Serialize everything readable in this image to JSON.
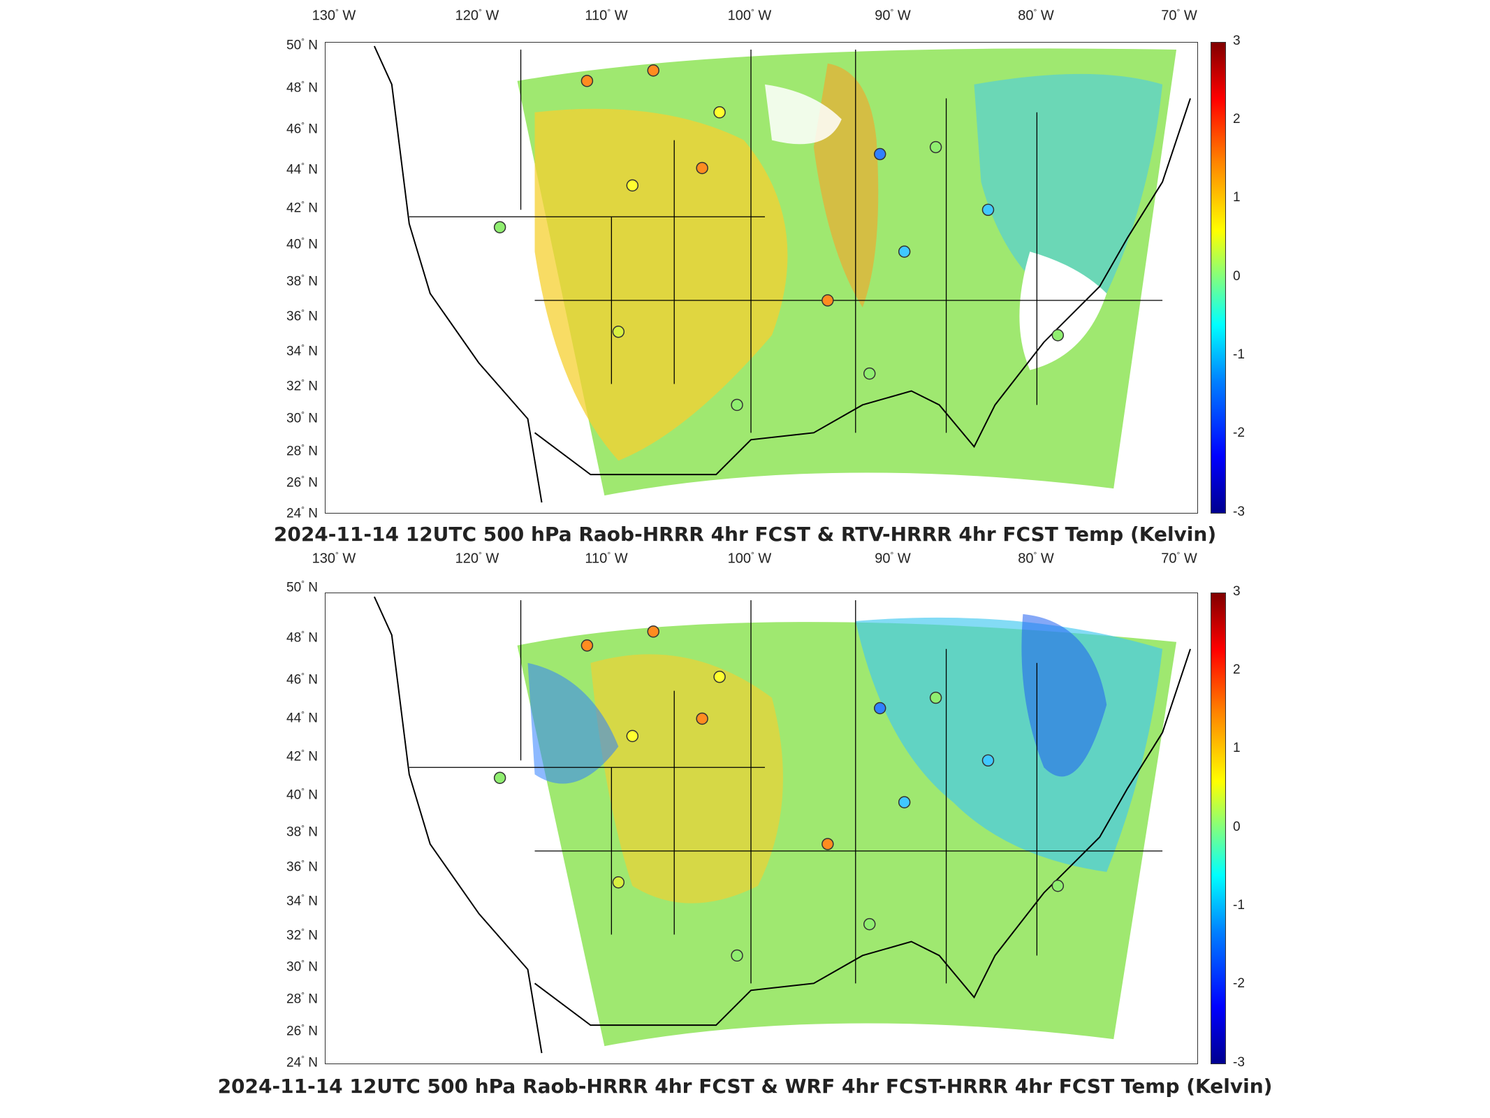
{
  "panels": [
    {
      "title": "2024-11-14 12UTC 500 hPa Raob-HRRR 4hr FCST & RTV-HRRR 4hr FCST Temp (Kelvin)"
    },
    {
      "title": "2024-11-14 12UTC 500 hPa Raob-HRRR 4hr FCST & WRF 4hr FCST-HRRR 4hr FCST Temp (Kelvin)"
    }
  ],
  "axes": {
    "lon_ticks": [
      "130",
      "120",
      "110",
      "100",
      "90",
      "80",
      "70"
    ],
    "lon_suffix": "W",
    "lat_ticks": [
      "50",
      "48",
      "46",
      "44",
      "42",
      "40",
      "38",
      "36",
      "34",
      "32",
      "30",
      "28",
      "26",
      "24"
    ],
    "lat_suffix": "N"
  },
  "colorbar": {
    "ticks": [
      "3",
      "2",
      "1",
      "0",
      "-1",
      "-2",
      "-3"
    ],
    "range": [
      -3,
      3
    ],
    "colormap": "jet"
  },
  "colors": {
    "field_low": "#0000ff",
    "field_mid": "#80ff80",
    "field_high": "#ff0000"
  }
}
